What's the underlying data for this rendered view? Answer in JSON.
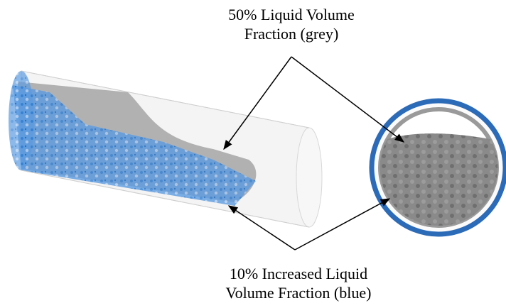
{
  "top_label": {
    "lines": [
      "50% Liquid Volume",
      "Fraction (grey)"
    ]
  },
  "bottom_label": {
    "lines": [
      "10% Increased Liquid",
      "Volume Fraction (blue)"
    ]
  }
}
